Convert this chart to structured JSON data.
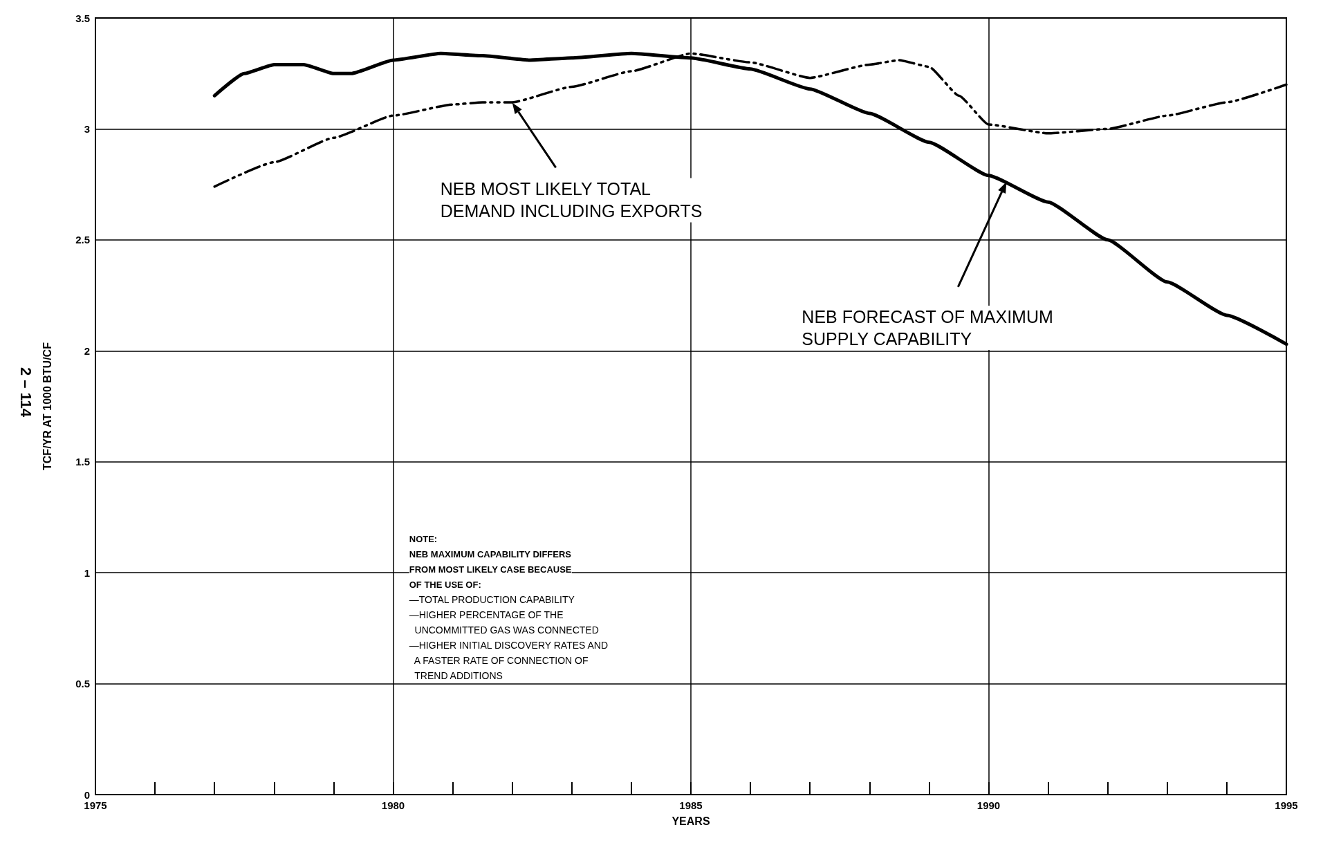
{
  "chart_data": {
    "type": "line",
    "xlabel": "YEARS",
    "ylabel": "TCF/YR AT 1000 BTU/CF",
    "x": [
      1977,
      1977.5,
      1978,
      1978.5,
      1979,
      1979.3,
      1980,
      1980.8,
      1981.5,
      1982.3,
      1983,
      1984,
      1985,
      1986,
      1987,
      1988,
      1989,
      1990,
      1991,
      1992,
      1993,
      1994,
      1995
    ],
    "series": [
      {
        "color": "#000000",
        "line_style": "solid",
        "values": [
          3.15,
          3.25,
          3.29,
          3.29,
          3.25,
          3.25,
          3.31,
          3.34,
          3.33,
          3.31,
          3.32,
          3.34,
          3.32,
          3.27,
          3.18,
          3.07,
          2.94,
          2.79,
          2.67,
          2.5,
          2.31,
          2.16,
          2.03
        ]
      },
      {
        "color": "#000000",
        "line_style": "dashed",
        "x": [
          1977,
          1978,
          1979,
          1980,
          1981,
          1981.5,
          1982,
          1983,
          1984,
          1985,
          1986,
          1987,
          1988,
          1988.5,
          1989,
          1989.5,
          1990,
          1991,
          1992,
          1993,
          1994,
          1995
        ],
        "values": [
          2.74,
          2.85,
          2.96,
          3.06,
          3.11,
          3.12,
          3.12,
          3.19,
          3.26,
          3.34,
          3.3,
          3.23,
          3.29,
          3.31,
          3.28,
          3.15,
          3.02,
          2.98,
          3.0,
          3.06,
          3.12,
          3.2
        ]
      }
    ],
    "xlim": [
      1975,
      1995
    ],
    "xticks": [
      1975,
      1980,
      1985,
      1990,
      1995
    ],
    "ylim": [
      0,
      3.5
    ],
    "yticks": [
      0,
      0.5,
      1.0,
      1.5,
      2.0,
      2.5,
      3.0,
      3.5
    ],
    "grid": true,
    "marker": "none",
    "annotations": [
      "NEB MOST LIKELY TOTAL\nDEMAND INCLUDING EXPORTS",
      "NEB FORECAST OF MAXIMUM\nSUPPLY CAPABILITY",
      "NOTE:\nNEB MAXIMUM CAPABILITY DIFFERS\nFROM MOST LIKELY CASE BECAUSE\nOF THE USE OF:\n—TOTAL PRODUCTION CAPABILITY\n—HIGHER PERCENTAGE OF THE\n  UNCOMMITTED GAS WAS CONNECTED\n—HIGHER INITIAL DISCOVERY RATES AND\n  A FASTER RATE OF CONNECTION OF\n  TREND ADDITIONS",
      "2 – 114"
    ]
  }
}
